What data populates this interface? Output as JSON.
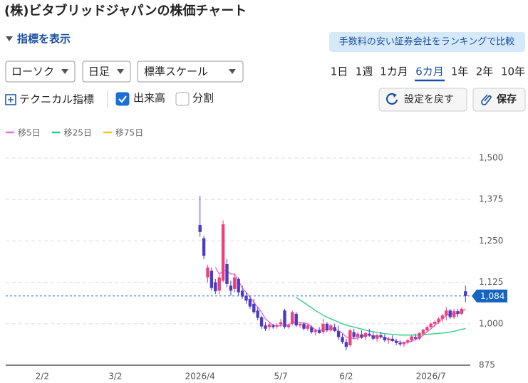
{
  "ui": {
    "title": "(株)ビタブリッドジャパンの株価チャート",
    "indicator_toggle": "指標を表示",
    "ranking_button": "手数料の安い証券会社をランキングで比較",
    "chart_type": "ローソク",
    "interval": "日足",
    "scale": "標準スケール",
    "periods": [
      "1日",
      "1週",
      "1カ月",
      "6カ月",
      "1年",
      "2年",
      "10年"
    ],
    "selected_period": 3,
    "technical": "テクニカル指標",
    "volume": "出来高",
    "volume_checked": true,
    "split": "分割",
    "split_checked": false,
    "reset": "設定を戻す",
    "save": "保存"
  },
  "chart_data": {
    "type": "candlestick",
    "categories": [
      null,
      null,
      null,
      null,
      null,
      null,
      null,
      null,
      null,
      "2/2",
      null,
      null,
      null,
      null,
      null,
      null,
      null,
      null,
      null,
      null,
      null,
      null,
      null,
      null,
      null,
      null,
      null,
      null,
      "3/2",
      null,
      null,
      null,
      null,
      null,
      null,
      null,
      null,
      null,
      null,
      null,
      null,
      null,
      null,
      null,
      null,
      null,
      null,
      null,
      null,
      null,
      "2026/4",
      null,
      null,
      null,
      null,
      null,
      null,
      null,
      null,
      null,
      null,
      null,
      null,
      null,
      null,
      null,
      null,
      null,
      null,
      null,
      null,
      "5/7",
      null,
      null,
      null,
      null,
      null,
      null,
      null,
      null,
      null,
      null,
      null,
      null,
      null,
      null,
      null,
      null,
      "6/2",
      null,
      null,
      null,
      null,
      null,
      null,
      null,
      null,
      null,
      null,
      null,
      null,
      null,
      null,
      null,
      null,
      null,
      null,
      null,
      null,
      null,
      "2026/7",
      null,
      null,
      null,
      null,
      null,
      null,
      null,
      null,
      null
    ],
    "open": [
      null,
      null,
      null,
      null,
      null,
      null,
      null,
      null,
      null,
      null,
      null,
      null,
      null,
      null,
      null,
      null,
      null,
      null,
      null,
      null,
      null,
      null,
      null,
      null,
      null,
      null,
      null,
      null,
      null,
      null,
      null,
      null,
      null,
      null,
      null,
      null,
      null,
      null,
      null,
      null,
      null,
      null,
      null,
      null,
      null,
      null,
      null,
      null,
      null,
      null,
      1298,
      1258,
      1140,
      1160,
      1125,
      1100,
      1130,
      1180,
      1115,
      1105,
      1135,
      1100,
      1085,
      1075,
      1060,
      1040,
      1020,
      995,
      990,
      995,
      992,
      998,
      1040,
      990,
      1000,
      1030,
      995,
      1000,
      985,
      990,
      975,
      980,
      975,
      1000,
      980,
      990,
      978,
      960,
      945,
      935,
      975,
      960,
      968,
      960,
      970,
      965,
      955,
      966,
      960,
      950,
      955,
      948,
      942,
      938,
      944,
      950,
      960,
      955,
      970,
      980,
      990,
      1000,
      1005,
      1015,
      1025,
      1040,
      1020,
      1038,
      1030,
      1098
    ],
    "high": [
      null,
      null,
      null,
      null,
      null,
      null,
      null,
      null,
      null,
      null,
      null,
      null,
      null,
      null,
      null,
      null,
      null,
      null,
      null,
      null,
      null,
      null,
      null,
      null,
      null,
      null,
      null,
      null,
      null,
      null,
      null,
      null,
      null,
      null,
      null,
      null,
      null,
      null,
      null,
      null,
      null,
      null,
      null,
      null,
      null,
      null,
      null,
      null,
      null,
      null,
      1386,
      1265,
      1178,
      1170,
      1135,
      1150,
      1312,
      1195,
      1130,
      1150,
      1140,
      1115,
      1095,
      1085,
      1075,
      1050,
      1025,
      1005,
      1005,
      1000,
      1000,
      1015,
      1045,
      1000,
      1040,
      1035,
      1005,
      1005,
      1000,
      995,
      985,
      990,
      1015,
      1005,
      1000,
      1000,
      995,
      970,
      955,
      985,
      985,
      975,
      980,
      975,
      985,
      975,
      970,
      975,
      968,
      960,
      965,
      955,
      950,
      946,
      955,
      965,
      970,
      975,
      985,
      995,
      1005,
      1010,
      1020,
      1030,
      1050,
      1045,
      1045,
      1045,
      1050,
      1115
    ],
    "low": [
      null,
      null,
      null,
      null,
      null,
      null,
      null,
      null,
      null,
      null,
      null,
      null,
      null,
      null,
      null,
      null,
      null,
      null,
      null,
      null,
      null,
      null,
      null,
      null,
      null,
      null,
      null,
      null,
      null,
      null,
      null,
      null,
      null,
      null,
      null,
      null,
      null,
      null,
      null,
      null,
      null,
      null,
      null,
      null,
      null,
      null,
      null,
      null,
      null,
      null,
      1262,
      1195,
      1125,
      1100,
      1090,
      1088,
      1125,
      1110,
      1085,
      1095,
      1085,
      1075,
      1060,
      1045,
      1030,
      1010,
      985,
      978,
      980,
      985,
      985,
      990,
      985,
      985,
      995,
      990,
      988,
      980,
      978,
      970,
      965,
      970,
      970,
      975,
      975,
      975,
      950,
      940,
      920,
      930,
      955,
      950,
      955,
      950,
      960,
      950,
      945,
      955,
      945,
      940,
      945,
      935,
      932,
      930,
      938,
      945,
      950,
      950,
      965,
      975,
      985,
      990,
      1000,
      1005,
      1010,
      1015,
      1015,
      1020,
      1025,
      1065
    ],
    "close": [
      null,
      null,
      null,
      null,
      null,
      null,
      null,
      null,
      null,
      null,
      null,
      null,
      null,
      null,
      null,
      null,
      null,
      null,
      null,
      null,
      null,
      null,
      null,
      null,
      null,
      null,
      null,
      null,
      null,
      null,
      null,
      null,
      null,
      null,
      null,
      null,
      null,
      null,
      null,
      null,
      null,
      null,
      null,
      null,
      null,
      null,
      null,
      null,
      null,
      null,
      1277,
      1205,
      1170,
      1108,
      1098,
      1140,
      1300,
      1120,
      1100,
      1140,
      1095,
      1082,
      1070,
      1052,
      1035,
      1018,
      992,
      985,
      998,
      990,
      996,
      1005,
      990,
      996,
      1035,
      995,
      1000,
      985,
      995,
      975,
      980,
      972,
      1000,
      980,
      995,
      978,
      960,
      945,
      930,
      980,
      960,
      970,
      958,
      972,
      965,
      955,
      966,
      960,
      950,
      955,
      948,
      942,
      938,
      944,
      950,
      962,
      955,
      972,
      982,
      990,
      1000,
      1006,
      1015,
      1025,
      1040,
      1020,
      1038,
      1030,
      1045,
      1084
    ],
    "up_color": "#f0407a",
    "down_color": "#4b3cc4",
    "series": [
      {
        "name": "移5日",
        "color": "#e66ee0",
        "values": [
          null,
          null,
          null,
          null,
          null,
          null,
          null,
          null,
          null,
          null,
          null,
          null,
          null,
          null,
          null,
          null,
          null,
          null,
          null,
          null,
          null,
          null,
          null,
          null,
          null,
          null,
          null,
          null,
          null,
          null,
          null,
          null,
          null,
          null,
          null,
          null,
          null,
          null,
          null,
          null,
          null,
          null,
          null,
          null,
          null,
          null,
          null,
          null,
          null,
          null,
          null,
          null,
          null,
          null,
          1170,
          1150,
          1160,
          1160,
          1150,
          1150,
          1130,
          1108,
          1095,
          1080,
          1065,
          1050,
          1035,
          1015,
          1005,
          996,
          992,
          995,
          997,
          997,
          1004,
          1005,
          1004,
          1002,
          1000,
          990,
          982,
          980,
          984,
          982,
          985,
          985,
          978,
          972,
          960,
          958,
          955,
          957,
          962,
          965,
          965,
          963,
          962,
          960,
          958,
          955,
          952,
          948,
          945,
          943,
          944,
          947,
          952,
          958,
          965,
          975,
          985,
          995,
          1005,
          1015,
          1025,
          1030,
          1030,
          1030,
          1035,
          1045
        ]
      },
      {
        "name": "移25日",
        "color": "#33cc88",
        "values": [
          null,
          null,
          null,
          null,
          null,
          null,
          null,
          null,
          null,
          null,
          null,
          null,
          null,
          null,
          null,
          null,
          null,
          null,
          null,
          null,
          null,
          null,
          null,
          null,
          null,
          null,
          null,
          null,
          null,
          null,
          null,
          null,
          null,
          null,
          null,
          null,
          null,
          null,
          null,
          null,
          null,
          null,
          null,
          null,
          null,
          null,
          null,
          null,
          null,
          null,
          null,
          null,
          null,
          null,
          null,
          null,
          null,
          null,
          null,
          null,
          null,
          null,
          null,
          null,
          null,
          null,
          null,
          null,
          null,
          null,
          null,
          null,
          null,
          null,
          null,
          1080,
          1072,
          1064,
          1056,
          1048,
          1040,
          1033,
          1026,
          1020,
          1015,
          1010,
          1005,
          1000,
          996,
          993,
          990,
          987,
          984,
          981,
          978,
          976,
          974,
          972,
          970,
          969,
          968,
          967,
          966,
          966,
          966,
          966,
          966,
          966,
          967,
          968,
          969,
          970,
          971,
          972,
          973,
          975,
          977,
          980,
          983,
          986
        ]
      },
      {
        "name": "移75日",
        "color": "#f5c518"
      }
    ],
    "ylim": [
      875,
      1500
    ],
    "yticks": [
      {
        "value": 875,
        "label": "875"
      },
      {
        "value": 1000,
        "label": "1,000"
      },
      {
        "value": 1125,
        "label": "1,125"
      },
      {
        "value": 1250,
        "label": "1,250"
      },
      {
        "value": 1375,
        "label": "1,375"
      },
      {
        "value": 1500,
        "label": "1,500"
      }
    ],
    "grid": true,
    "last_price": 1084,
    "last_price_label": "1,084",
    "last_price_color": "#1565c0"
  }
}
